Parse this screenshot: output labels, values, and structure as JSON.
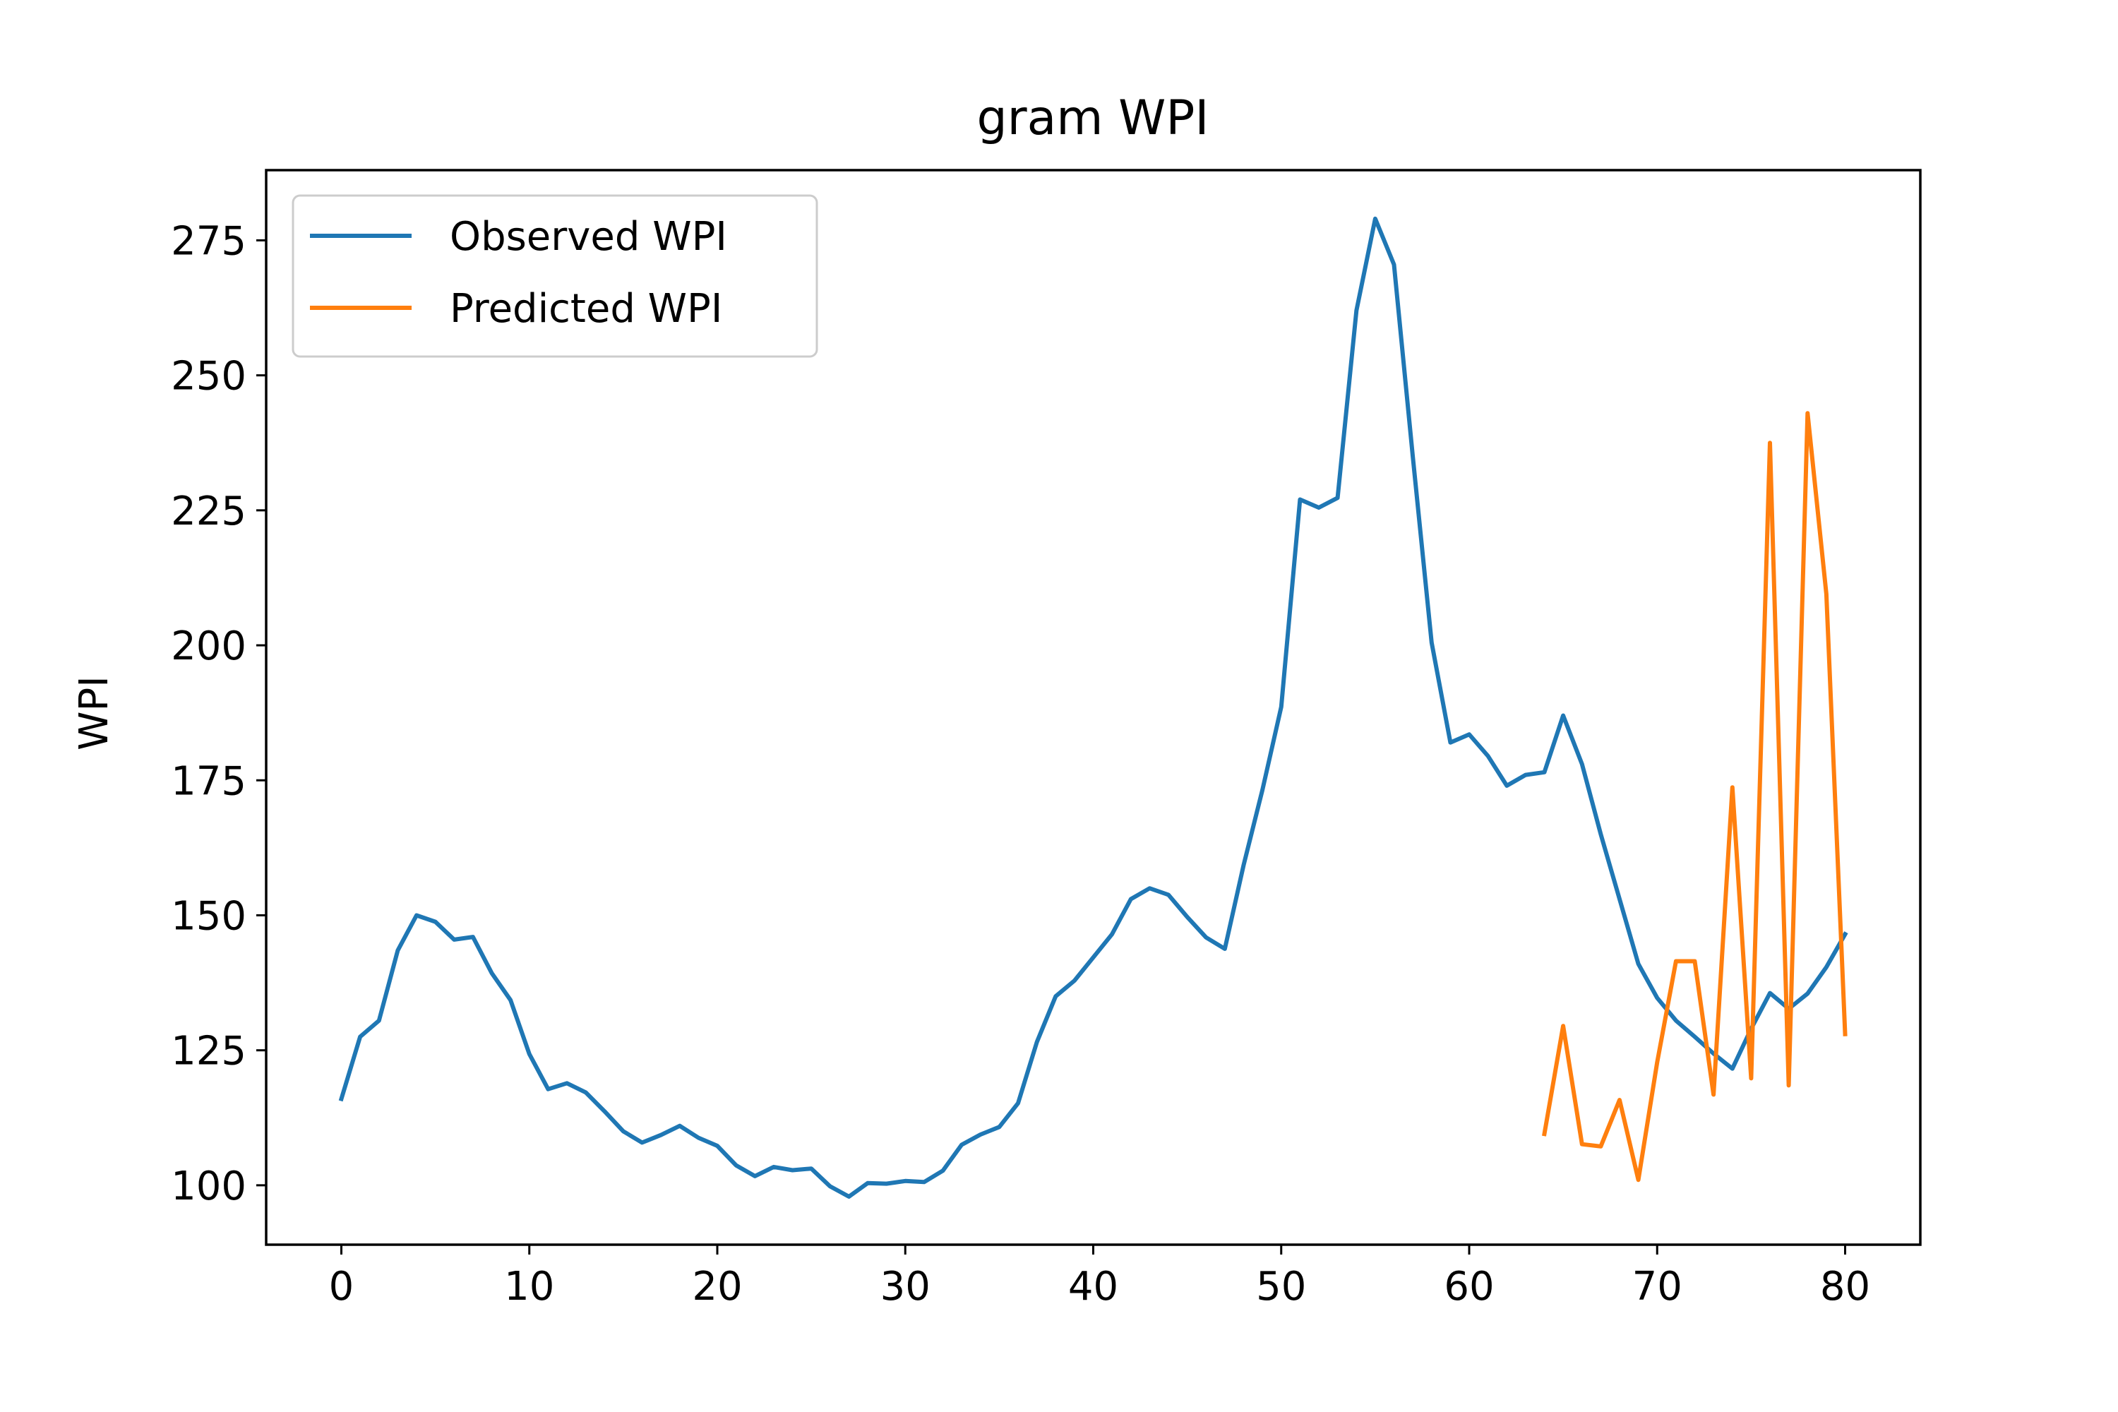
{
  "chart_data": {
    "type": "line",
    "title": "gram WPI",
    "xlabel": "",
    "ylabel": "WPI",
    "xlim": [
      -4,
      84
    ],
    "ylim": [
      89,
      288
    ],
    "xticks": [
      0,
      10,
      20,
      30,
      40,
      50,
      60,
      70,
      80
    ],
    "yticks": [
      100,
      125,
      150,
      175,
      200,
      225,
      250,
      275
    ],
    "grid": false,
    "legend_position": "upper-left",
    "series": [
      {
        "name": "Observed WPI",
        "color": "#1f77b4",
        "x": [
          0,
          1,
          2,
          3,
          4,
          5,
          6,
          7,
          8,
          9,
          10,
          11,
          12,
          13,
          14,
          15,
          16,
          17,
          18,
          19,
          20,
          21,
          22,
          23,
          24,
          25,
          26,
          27,
          28,
          29,
          30,
          31,
          32,
          33,
          34,
          35,
          36,
          37,
          38,
          39,
          40,
          41,
          42,
          43,
          44,
          45,
          46,
          47,
          48,
          49,
          50,
          51,
          52,
          53,
          54,
          55,
          56,
          57,
          58,
          59,
          60,
          61,
          62,
          63,
          64,
          65,
          66,
          67,
          68,
          69,
          70,
          71,
          72,
          73,
          74,
          75,
          76,
          77,
          78,
          79,
          80
        ],
        "values": [
          116,
          127.5,
          130.5,
          143.5,
          150,
          148.8,
          145.5,
          146,
          139.3,
          134.3,
          124.3,
          117.8,
          118.9,
          117.2,
          113.7,
          110,
          107.9,
          109.3,
          111,
          108.8,
          107.3,
          103.7,
          101.7,
          103.4,
          102.8,
          103.1,
          99.8,
          97.9,
          100.4,
          100.3,
          100.8,
          100.6,
          102.7,
          107.5,
          109.4,
          110.8,
          115.2,
          126.5,
          135,
          137.9,
          142.2,
          146.5,
          153,
          155,
          153.8,
          149.7,
          145.9,
          143.8,
          159.3,
          173.2,
          188.6,
          227,
          225.5,
          227.3,
          262,
          279,
          270.5,
          235,
          200.5,
          182,
          183.5,
          179.5,
          174,
          176,
          176.5,
          187,
          178,
          165,
          153,
          141,
          134.7,
          130.5,
          127.5,
          124.4,
          121.6,
          129,
          135.6,
          132.7,
          135.5,
          140.4,
          146.5
        ]
      },
      {
        "name": "Predicted WPI",
        "color": "#ff7f0e",
        "x": [
          64,
          65,
          66,
          67,
          68,
          69,
          70,
          71,
          72,
          73,
          74,
          75,
          76,
          77,
          78,
          79,
          80
        ],
        "values": [
          109.5,
          129.5,
          107.6,
          107.2,
          115.8,
          101,
          122.8,
          141.5,
          141.5,
          116.8,
          173.7,
          119.8,
          237.5,
          118.5,
          243,
          209.5,
          128
        ]
      }
    ]
  }
}
